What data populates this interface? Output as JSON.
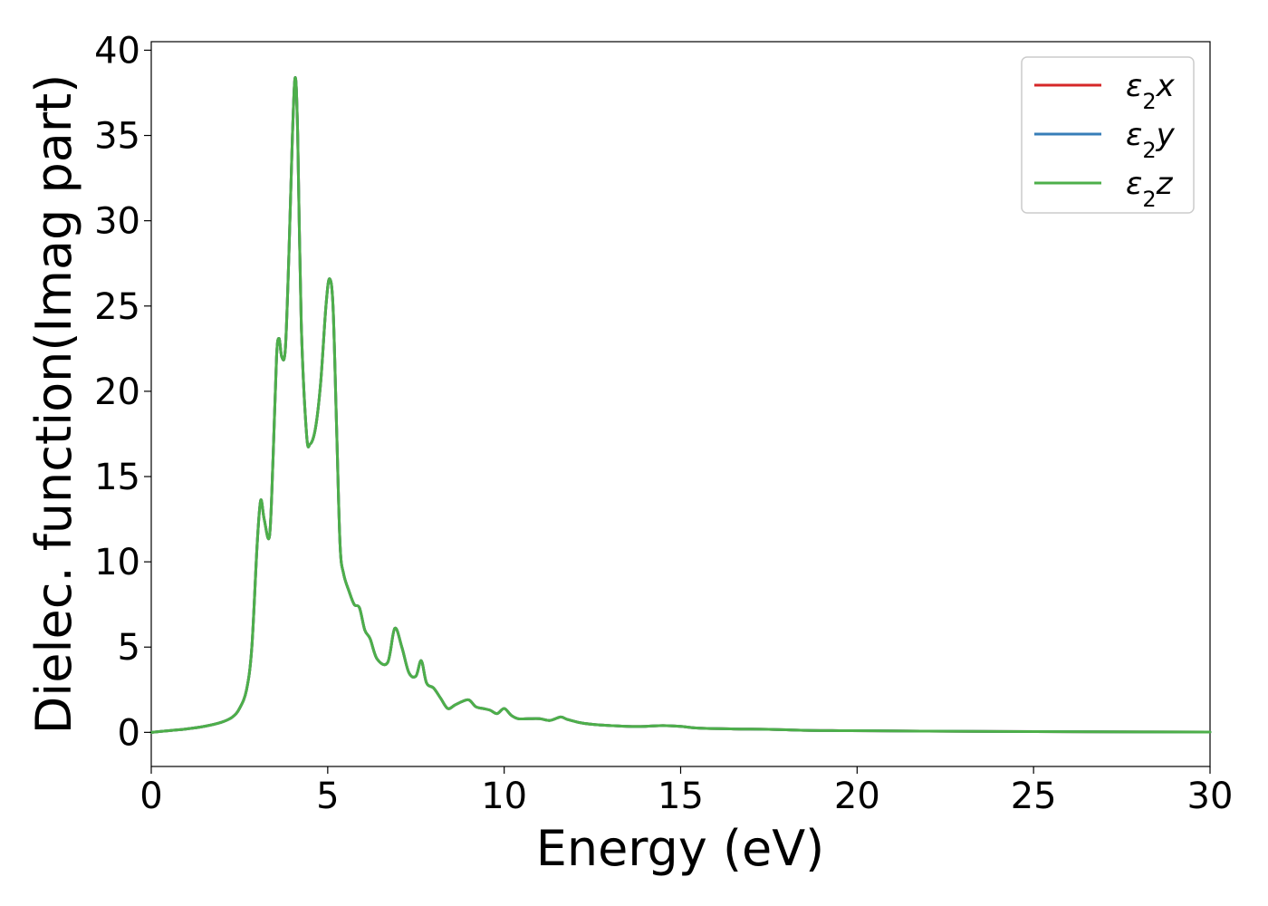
{
  "chart_data": {
    "type": "line",
    "xlabel": "Energy (eV)",
    "ylabel": "Dielec. function(Imag part)",
    "xlim": [
      0,
      30
    ],
    "ylim": [
      -2,
      40.5
    ],
    "xticks": [
      0,
      5,
      10,
      15,
      20,
      25,
      30
    ],
    "yticks": [
      0,
      5,
      10,
      15,
      20,
      25,
      30,
      35,
      40
    ],
    "grid": false,
    "legend_position": "top-right",
    "series": [
      {
        "name": "ε₂x",
        "legend": {
          "base": "ε",
          "sub": "2",
          "suffix": "x"
        },
        "color": "#d62728",
        "x": [
          0,
          0.5,
          1.0,
          1.5,
          2.0,
          2.3,
          2.5,
          2.7,
          2.85,
          3.0,
          3.1,
          3.2,
          3.35,
          3.45,
          3.55,
          3.62,
          3.7,
          3.8,
          3.9,
          4.0,
          4.08,
          4.15,
          4.25,
          4.4,
          4.5,
          4.65,
          4.8,
          4.95,
          5.05,
          5.15,
          5.25,
          5.35,
          5.45,
          5.6,
          5.75,
          5.9,
          6.05,
          6.2,
          6.4,
          6.7,
          6.9,
          7.1,
          7.3,
          7.5,
          7.65,
          7.8,
          8.0,
          8.2,
          8.4,
          8.6,
          8.8,
          9.0,
          9.2,
          9.4,
          9.6,
          9.8,
          10.0,
          10.2,
          10.4,
          10.7,
          11.0,
          11.3,
          11.6,
          11.8,
          12.2,
          12.6,
          13.0,
          13.5,
          14.0,
          14.5,
          15.0,
          15.5,
          16.5,
          17.5,
          18.5,
          19.5,
          20.5,
          22.0,
          24.0,
          27.0,
          30.0
        ],
        "y": [
          0,
          0.1,
          0.2,
          0.35,
          0.6,
          0.9,
          1.4,
          2.5,
          5.0,
          11.0,
          13.6,
          12.5,
          11.5,
          16.0,
          22.0,
          23.1,
          22.0,
          22.5,
          28.0,
          35.0,
          38.4,
          35.0,
          24.0,
          17.5,
          16.9,
          17.8,
          20.5,
          25.0,
          26.6,
          25.0,
          18.0,
          11.0,
          9.3,
          8.3,
          7.5,
          7.3,
          6.0,
          5.5,
          4.3,
          4.1,
          6.1,
          5.0,
          3.5,
          3.3,
          4.2,
          2.9,
          2.6,
          2.0,
          1.4,
          1.6,
          1.8,
          1.9,
          1.5,
          1.4,
          1.3,
          1.1,
          1.4,
          1.0,
          0.8,
          0.8,
          0.8,
          0.7,
          0.9,
          0.75,
          0.55,
          0.45,
          0.4,
          0.35,
          0.35,
          0.4,
          0.35,
          0.25,
          0.2,
          0.18,
          0.12,
          0.1,
          0.09,
          0.07,
          0.05,
          0.03,
          0.02
        ]
      },
      {
        "name": "ε₂y",
        "legend": {
          "base": "ε",
          "sub": "2",
          "suffix": "y"
        },
        "color": "#377eb8",
        "x": [
          0,
          0.5,
          1.0,
          1.5,
          2.0,
          2.3,
          2.5,
          2.7,
          2.85,
          3.0,
          3.1,
          3.2,
          3.35,
          3.45,
          3.55,
          3.62,
          3.7,
          3.8,
          3.9,
          4.0,
          4.08,
          4.15,
          4.25,
          4.4,
          4.5,
          4.65,
          4.8,
          4.95,
          5.05,
          5.15,
          5.25,
          5.35,
          5.45,
          5.6,
          5.75,
          5.9,
          6.05,
          6.2,
          6.4,
          6.7,
          6.9,
          7.1,
          7.3,
          7.5,
          7.65,
          7.8,
          8.0,
          8.2,
          8.4,
          8.6,
          8.8,
          9.0,
          9.2,
          9.4,
          9.6,
          9.8,
          10.0,
          10.2,
          10.4,
          10.7,
          11.0,
          11.3,
          11.6,
          11.8,
          12.2,
          12.6,
          13.0,
          13.5,
          14.0,
          14.5,
          15.0,
          15.5,
          16.5,
          17.5,
          18.5,
          19.5,
          20.5,
          22.0,
          24.0,
          27.0,
          30.0
        ],
        "y": [
          0,
          0.1,
          0.2,
          0.35,
          0.6,
          0.9,
          1.4,
          2.5,
          5.0,
          11.0,
          13.6,
          12.5,
          11.5,
          16.0,
          22.0,
          23.1,
          22.0,
          22.5,
          28.0,
          35.0,
          38.4,
          35.0,
          24.0,
          17.5,
          16.9,
          17.8,
          20.5,
          25.0,
          26.6,
          25.0,
          18.0,
          11.0,
          9.3,
          8.3,
          7.5,
          7.3,
          6.0,
          5.5,
          4.3,
          4.1,
          6.1,
          5.0,
          3.5,
          3.3,
          4.2,
          2.9,
          2.6,
          2.0,
          1.4,
          1.6,
          1.8,
          1.9,
          1.5,
          1.4,
          1.3,
          1.1,
          1.4,
          1.0,
          0.8,
          0.8,
          0.8,
          0.7,
          0.9,
          0.75,
          0.55,
          0.45,
          0.4,
          0.35,
          0.35,
          0.4,
          0.35,
          0.25,
          0.2,
          0.18,
          0.12,
          0.1,
          0.09,
          0.07,
          0.05,
          0.03,
          0.02
        ]
      },
      {
        "name": "ε₂z",
        "legend": {
          "base": "ε",
          "sub": "2",
          "suffix": "z"
        },
        "color": "#4daf4a",
        "x": [
          0,
          0.5,
          1.0,
          1.5,
          2.0,
          2.3,
          2.5,
          2.7,
          2.85,
          3.0,
          3.1,
          3.2,
          3.35,
          3.45,
          3.55,
          3.62,
          3.7,
          3.8,
          3.9,
          4.0,
          4.08,
          4.15,
          4.25,
          4.4,
          4.5,
          4.65,
          4.8,
          4.95,
          5.05,
          5.15,
          5.25,
          5.35,
          5.45,
          5.6,
          5.75,
          5.9,
          6.05,
          6.2,
          6.4,
          6.7,
          6.9,
          7.1,
          7.3,
          7.5,
          7.65,
          7.8,
          8.0,
          8.2,
          8.4,
          8.6,
          8.8,
          9.0,
          9.2,
          9.4,
          9.6,
          9.8,
          10.0,
          10.2,
          10.4,
          10.7,
          11.0,
          11.3,
          11.6,
          11.8,
          12.2,
          12.6,
          13.0,
          13.5,
          14.0,
          14.5,
          15.0,
          15.5,
          16.5,
          17.5,
          18.5,
          19.5,
          20.5,
          22.0,
          24.0,
          27.0,
          30.0
        ],
        "y": [
          0,
          0.1,
          0.2,
          0.35,
          0.6,
          0.9,
          1.4,
          2.5,
          5.0,
          11.0,
          13.6,
          12.5,
          11.5,
          16.0,
          22.0,
          23.1,
          22.0,
          22.5,
          28.0,
          35.0,
          38.4,
          35.0,
          24.0,
          17.5,
          16.9,
          17.8,
          20.5,
          25.0,
          26.6,
          25.0,
          18.0,
          11.0,
          9.3,
          8.3,
          7.5,
          7.3,
          6.0,
          5.5,
          4.3,
          4.1,
          6.1,
          5.0,
          3.5,
          3.3,
          4.2,
          2.9,
          2.6,
          2.0,
          1.4,
          1.6,
          1.8,
          1.9,
          1.5,
          1.4,
          1.3,
          1.1,
          1.4,
          1.0,
          0.8,
          0.8,
          0.8,
          0.7,
          0.9,
          0.75,
          0.55,
          0.45,
          0.4,
          0.35,
          0.35,
          0.4,
          0.35,
          0.25,
          0.2,
          0.18,
          0.12,
          0.1,
          0.09,
          0.07,
          0.05,
          0.03,
          0.02
        ]
      }
    ]
  }
}
